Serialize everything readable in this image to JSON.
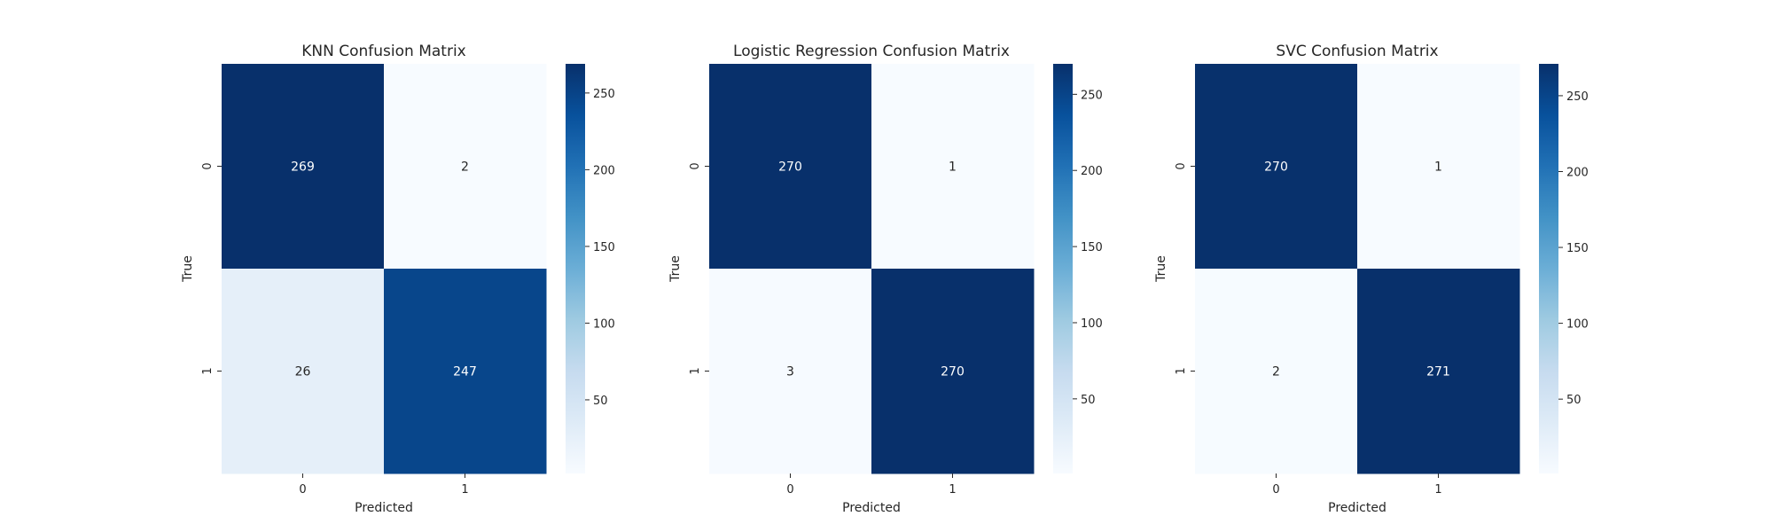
{
  "chart_data": [
    {
      "type": "heatmap",
      "title": "KNN Confusion Matrix",
      "xlabel": "Predicted",
      "ylabel": "True",
      "x_categories": [
        "0",
        "1"
      ],
      "y_categories": [
        "0",
        "1"
      ],
      "values": [
        [
          269,
          2
        ],
        [
          26,
          247
        ]
      ],
      "colormap": "Blues",
      "vmin": 2,
      "vmax": 269,
      "colorbar_ticks": [
        50,
        100,
        150,
        200,
        250
      ]
    },
    {
      "type": "heatmap",
      "title": "Logistic Regression Confusion Matrix",
      "xlabel": "Predicted",
      "ylabel": "True",
      "x_categories": [
        "0",
        "1"
      ],
      "y_categories": [
        "0",
        "1"
      ],
      "values": [
        [
          270,
          1
        ],
        [
          3,
          270
        ]
      ],
      "colormap": "Blues",
      "vmin": 1,
      "vmax": 270,
      "colorbar_ticks": [
        50,
        100,
        150,
        200,
        250
      ]
    },
    {
      "type": "heatmap",
      "title": "SVC Confusion Matrix",
      "xlabel": "Predicted",
      "ylabel": "True",
      "x_categories": [
        "0",
        "1"
      ],
      "y_categories": [
        "0",
        "1"
      ],
      "values": [
        [
          270,
          1
        ],
        [
          2,
          271
        ]
      ],
      "colormap": "Blues",
      "vmin": 1,
      "vmax": 271,
      "colorbar_ticks": [
        50,
        100,
        150,
        200,
        250
      ]
    }
  ]
}
